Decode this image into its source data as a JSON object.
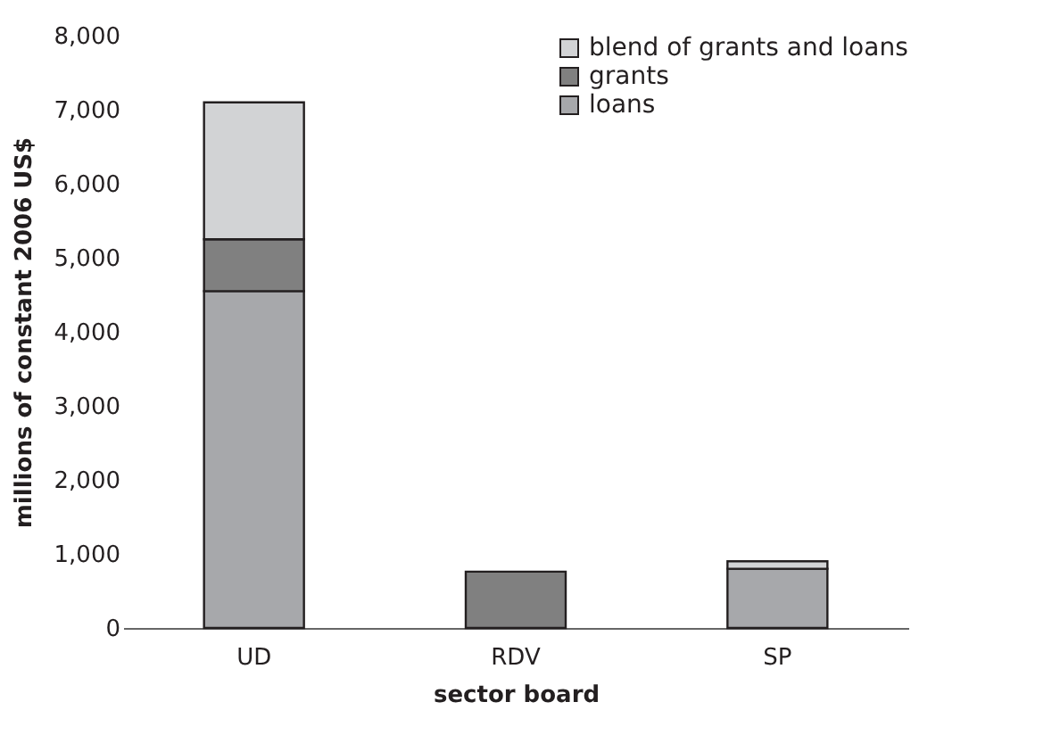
{
  "chart_data": {
    "type": "bar",
    "stacked": true,
    "xlabel": "sector board",
    "ylabel": "millions of constant 2006 US$",
    "categories": [
      "UD",
      "RDV",
      "SP"
    ],
    "series": [
      {
        "name": "loans",
        "color": "#a7a8ab",
        "values": [
          4550,
          null,
          800
        ]
      },
      {
        "name": "grants",
        "color": "#808080",
        "values": [
          700,
          760,
          null
        ]
      },
      {
        "name": "blend of grants and loans",
        "color": "#d2d3d5",
        "values": [
          1850,
          null,
          100
        ]
      }
    ],
    "ylim": [
      0,
      8000
    ],
    "yticks": [
      {
        "value": 0,
        "label": "0"
      },
      {
        "value": 1000,
        "label": "1,000"
      },
      {
        "value": 2000,
        "label": "2,000"
      },
      {
        "value": 3000,
        "label": "3,000"
      },
      {
        "value": 4000,
        "label": "4,000"
      },
      {
        "value": 5000,
        "label": "5,000"
      },
      {
        "value": 6000,
        "label": "6,000"
      },
      {
        "value": 7000,
        "label": "7,000"
      },
      {
        "value": 8000,
        "label": "8,000"
      }
    ],
    "legend": "top right",
    "grid": false
  }
}
